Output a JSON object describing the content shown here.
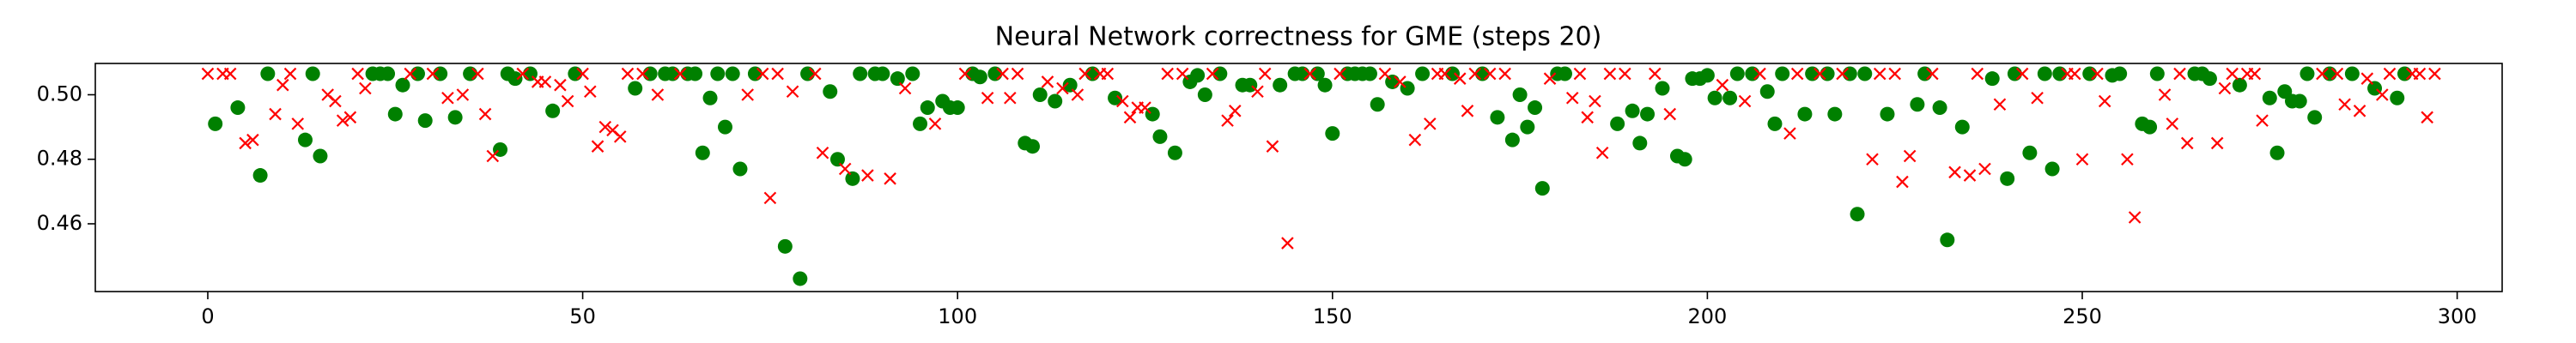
{
  "chart_data": {
    "type": "scatter",
    "title": "Neural Network correctness for GME (steps 20)",
    "xlim": [
      -15,
      306
    ],
    "ylim": [
      0.439,
      0.5097
    ],
    "xticks": [
      0,
      50,
      100,
      150,
      200,
      250,
      300
    ],
    "yticks": [
      0.46,
      0.48,
      {
        "value": 0.5,
        "label": "0.50"
      }
    ],
    "grid": false,
    "series": [
      {
        "color": "#008000",
        "marker": "o",
        "x": [
          1,
          4,
          7,
          8,
          13,
          14,
          15,
          22,
          23,
          24,
          25,
          26,
          28,
          29,
          31,
          33,
          35,
          39,
          40,
          41,
          43,
          46,
          49,
          57,
          59,
          61,
          62,
          64,
          65,
          66,
          67,
          68,
          69,
          70,
          71,
          73,
          77,
          79,
          80,
          83,
          84,
          86,
          87,
          89,
          90,
          92,
          94,
          95,
          96,
          98,
          99,
          100,
          102,
          103,
          105,
          109,
          110,
          111,
          113,
          115,
          118,
          121,
          126,
          127,
          129,
          131,
          132,
          133,
          135,
          138,
          139,
          143,
          145,
          146,
          148,
          149,
          150,
          152,
          153,
          154,
          155,
          156,
          158,
          160,
          162,
          166,
          170,
          172,
          174,
          175,
          176,
          177,
          178,
          180,
          181,
          188,
          190,
          191,
          192,
          194,
          196,
          197,
          198,
          199,
          200,
          201,
          203,
          204,
          206,
          208,
          209,
          210,
          213,
          214,
          216,
          217,
          219,
          220,
          221,
          224,
          228,
          229,
          231,
          232,
          234,
          238,
          240,
          241,
          243,
          245,
          246,
          247,
          251,
          254,
          255,
          258,
          259,
          260,
          265,
          266,
          267,
          271,
          275,
          276,
          277,
          278,
          279,
          280,
          281,
          283,
          286,
          289,
          292,
          293
        ],
        "values": [
          0.491,
          0.496,
          0.475,
          0.5065,
          0.486,
          0.5065,
          0.481,
          0.5065,
          0.5065,
          0.5065,
          0.494,
          0.503,
          0.5065,
          0.492,
          0.5065,
          0.493,
          0.5065,
          0.483,
          0.5065,
          0.505,
          0.5065,
          0.495,
          0.5065,
          0.502,
          0.5065,
          0.5065,
          0.5065,
          0.5065,
          0.5065,
          0.482,
          0.499,
          0.5065,
          0.49,
          0.5065,
          0.477,
          0.5065,
          0.453,
          0.443,
          0.5065,
          0.501,
          0.48,
          0.474,
          0.5065,
          0.5065,
          0.5065,
          0.505,
          0.5065,
          0.491,
          0.496,
          0.498,
          0.496,
          0.496,
          0.5065,
          0.5055,
          0.5065,
          0.485,
          0.484,
          0.5,
          0.498,
          0.503,
          0.5065,
          0.499,
          0.494,
          0.487,
          0.482,
          0.504,
          0.506,
          0.5,
          0.5065,
          0.503,
          0.503,
          0.503,
          0.5065,
          0.5065,
          0.5065,
          0.503,
          0.488,
          0.5065,
          0.5065,
          0.5065,
          0.5065,
          0.497,
          0.504,
          0.502,
          0.5065,
          0.5065,
          0.5065,
          0.493,
          0.486,
          0.5,
          0.49,
          0.496,
          0.471,
          0.5065,
          0.5065,
          0.491,
          0.495,
          0.485,
          0.494,
          0.502,
          0.481,
          0.48,
          0.505,
          0.505,
          0.506,
          0.499,
          0.499,
          0.5065,
          0.5065,
          0.501,
          0.491,
          0.5065,
          0.494,
          0.5065,
          0.5065,
          0.494,
          0.5065,
          0.463,
          0.5065,
          0.494,
          0.497,
          0.5065,
          0.496,
          0.455,
          0.49,
          0.505,
          0.474,
          0.5065,
          0.482,
          0.5065,
          0.477,
          0.5065,
          0.5065,
          0.506,
          0.5065,
          0.491,
          0.49,
          0.5065,
          0.5065,
          0.5065,
          0.505,
          0.503,
          0.499,
          0.482,
          0.501,
          0.498,
          0.498,
          0.5065,
          0.493,
          0.5065,
          0.5065,
          0.502,
          0.499,
          0.5065
        ]
      },
      {
        "color": "#ff0000",
        "marker": "x",
        "x": [
          0,
          2,
          3,
          5,
          6,
          9,
          10,
          11,
          12,
          16,
          17,
          18,
          19,
          20,
          21,
          27,
          30,
          32,
          34,
          36,
          37,
          38,
          42,
          44,
          45,
          47,
          48,
          50,
          51,
          52,
          53,
          54,
          55,
          56,
          58,
          60,
          63,
          72,
          74,
          75,
          76,
          78,
          81,
          82,
          85,
          88,
          91,
          93,
          97,
          101,
          104,
          106,
          107,
          108,
          112,
          114,
          116,
          117,
          119,
          120,
          122,
          123,
          124,
          125,
          128,
          130,
          134,
          136,
          137,
          140,
          141,
          142,
          144,
          147,
          151,
          157,
          159,
          161,
          163,
          164,
          165,
          167,
          168,
          169,
          171,
          173,
          179,
          182,
          183,
          184,
          185,
          186,
          187,
          189,
          193,
          195,
          202,
          205,
          207,
          211,
          212,
          215,
          218,
          222,
          223,
          225,
          226,
          227,
          230,
          233,
          235,
          236,
          237,
          239,
          242,
          244,
          248,
          249,
          250,
          252,
          253,
          256,
          257,
          261,
          262,
          263,
          264,
          268,
          269,
          270,
          272,
          273,
          274,
          282,
          284,
          285,
          287,
          288,
          290,
          291,
          294,
          295,
          296,
          297
        ],
        "values": [
          0.5065,
          0.5065,
          0.5065,
          0.485,
          0.486,
          0.494,
          0.503,
          0.5065,
          0.491,
          0.5,
          0.498,
          0.492,
          0.493,
          0.5065,
          0.502,
          0.5065,
          0.5065,
          0.499,
          0.5,
          0.5065,
          0.494,
          0.481,
          0.5065,
          0.504,
          0.504,
          0.503,
          0.498,
          0.5065,
          0.501,
          0.484,
          0.49,
          0.489,
          0.487,
          0.5065,
          0.5065,
          0.5,
          0.5065,
          0.5,
          0.5065,
          0.468,
          0.5065,
          0.501,
          0.5065,
          0.482,
          0.477,
          0.475,
          0.474,
          0.502,
          0.491,
          0.5065,
          0.499,
          0.5065,
          0.499,
          0.5065,
          0.504,
          0.502,
          0.5,
          0.5065,
          0.5065,
          0.5065,
          0.498,
          0.493,
          0.496,
          0.496,
          0.5065,
          0.5065,
          0.5065,
          0.492,
          0.495,
          0.501,
          0.5065,
          0.484,
          0.454,
          0.5065,
          0.5065,
          0.5065,
          0.504,
          0.486,
          0.491,
          0.5065,
          0.5065,
          0.505,
          0.495,
          0.5065,
          0.5065,
          0.5065,
          0.505,
          0.499,
          0.5065,
          0.493,
          0.498,
          0.482,
          0.5065,
          0.5065,
          0.5065,
          0.494,
          0.503,
          0.498,
          0.5065,
          0.488,
          0.5065,
          0.5065,
          0.5065,
          0.48,
          0.5065,
          0.5065,
          0.473,
          0.481,
          0.5065,
          0.476,
          0.475,
          0.5065,
          0.477,
          0.497,
          0.5065,
          0.499,
          0.5065,
          0.5065,
          0.48,
          0.5065,
          0.498,
          0.48,
          0.462,
          0.5,
          0.491,
          0.5065,
          0.485,
          0.485,
          0.502,
          0.5065,
          0.5065,
          0.5065,
          0.492,
          0.5065,
          0.5065,
          0.497,
          0.495,
          0.505,
          0.5,
          0.5065,
          0.5065,
          0.5065,
          0.493,
          0.5065
        ]
      }
    ]
  }
}
